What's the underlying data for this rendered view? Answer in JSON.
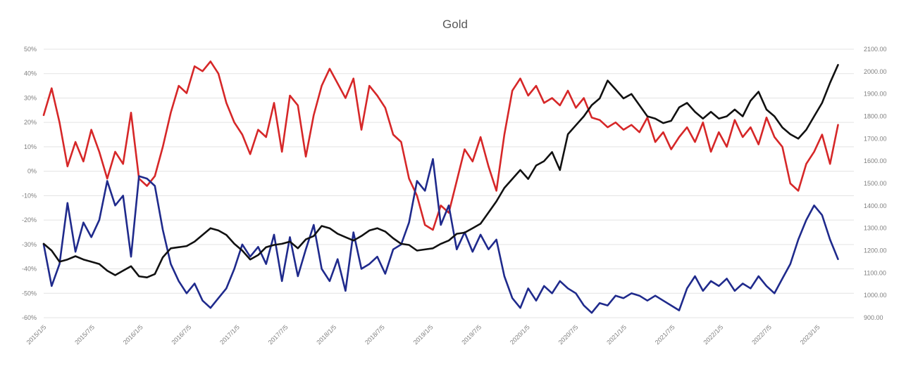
{
  "chart_data": {
    "type": "line",
    "title": "Gold",
    "grid": true,
    "legend": "none",
    "x": [
      "2015/1/5",
      "2015/7/5",
      "2016/1/5",
      "2016/7/5",
      "2017/1/5",
      "2017/7/5",
      "2018/1/5",
      "2018/7/5",
      "2019/1/5",
      "2019/7/5",
      "2020/1/5",
      "2020/7/5",
      "2021/1/5",
      "2021/7/5",
      "2022/1/5",
      "2022/7/5",
      "2023/1/5"
    ],
    "y_left": {
      "ticks": [
        "50%",
        "40%",
        "30%",
        "20%",
        "10%",
        "0%",
        "-10%",
        "-20%",
        "-30%",
        "-40%",
        "-50%",
        "-60%"
      ],
      "range": [
        -60,
        50
      ]
    },
    "y_right": {
      "ticks": [
        "2100.00",
        "2000.00",
        "1900.00",
        "1800.00",
        "1700.00",
        "1600.00",
        "1500.00",
        "1400.00",
        "1300.00",
        "1200.00",
        "1100.00",
        "1000.00",
        "900.00"
      ],
      "range": [
        900,
        2100
      ]
    },
    "series": [
      {
        "color": "#d62728",
        "axis": "left",
        "values": [
          [
            0,
            23
          ],
          [
            0.15,
            34
          ],
          [
            0.3,
            20
          ],
          [
            0.45,
            2
          ],
          [
            0.6,
            12
          ],
          [
            0.75,
            4
          ],
          [
            0.9,
            17
          ],
          [
            1.05,
            8
          ],
          [
            1.2,
            -3
          ],
          [
            1.35,
            8
          ],
          [
            1.5,
            3
          ],
          [
            1.65,
            24
          ],
          [
            1.8,
            -3
          ],
          [
            1.95,
            -6
          ],
          [
            2.1,
            -2
          ],
          [
            2.25,
            10
          ],
          [
            2.4,
            24
          ],
          [
            2.55,
            35
          ],
          [
            2.7,
            32
          ],
          [
            2.85,
            43
          ],
          [
            3,
            41
          ],
          [
            3.15,
            45
          ],
          [
            3.3,
            40
          ],
          [
            3.45,
            28
          ],
          [
            3.6,
            20
          ],
          [
            3.75,
            15
          ],
          [
            3.9,
            7
          ],
          [
            4.05,
            17
          ],
          [
            4.2,
            14
          ],
          [
            4.35,
            28
          ],
          [
            4.5,
            8
          ],
          [
            4.65,
            31
          ],
          [
            4.8,
            27
          ],
          [
            4.95,
            6
          ],
          [
            5.1,
            23
          ],
          [
            5.25,
            35
          ],
          [
            5.4,
            42
          ],
          [
            5.55,
            36
          ],
          [
            5.7,
            30
          ],
          [
            5.85,
            38
          ],
          [
            6,
            17
          ],
          [
            6.15,
            35
          ],
          [
            6.3,
            31
          ],
          [
            6.45,
            26
          ],
          [
            6.6,
            15
          ],
          [
            6.75,
            12
          ],
          [
            6.9,
            -3
          ],
          [
            7.05,
            -10
          ],
          [
            7.2,
            -22
          ],
          [
            7.35,
            -24
          ],
          [
            7.5,
            -14
          ],
          [
            7.65,
            -17
          ],
          [
            7.8,
            -4
          ],
          [
            7.95,
            9
          ],
          [
            8.1,
            4
          ],
          [
            8.25,
            14
          ],
          [
            8.4,
            2
          ],
          [
            8.55,
            -8
          ],
          [
            8.7,
            15
          ],
          [
            8.85,
            33
          ],
          [
            9,
            38
          ],
          [
            9.15,
            31
          ],
          [
            9.3,
            35
          ],
          [
            9.45,
            28
          ],
          [
            9.6,
            30
          ],
          [
            9.75,
            27
          ],
          [
            9.9,
            33
          ],
          [
            10.05,
            26
          ],
          [
            10.2,
            30
          ],
          [
            10.35,
            22
          ],
          [
            10.5,
            21
          ],
          [
            10.65,
            18
          ],
          [
            10.8,
            20
          ],
          [
            10.95,
            17
          ],
          [
            11.1,
            19
          ],
          [
            11.25,
            16
          ],
          [
            11.4,
            22
          ],
          [
            11.55,
            12
          ],
          [
            11.7,
            16
          ],
          [
            11.85,
            9
          ],
          [
            12,
            14
          ],
          [
            12.15,
            18
          ],
          [
            12.3,
            12
          ],
          [
            12.45,
            20
          ],
          [
            12.6,
            8
          ],
          [
            12.75,
            16
          ],
          [
            12.9,
            10
          ],
          [
            13.05,
            21
          ],
          [
            13.2,
            14
          ],
          [
            13.35,
            18
          ],
          [
            13.5,
            11
          ],
          [
            13.65,
            22
          ],
          [
            13.8,
            14
          ],
          [
            13.95,
            10
          ],
          [
            14.1,
            -5
          ],
          [
            14.25,
            -8
          ],
          [
            14.4,
            3
          ],
          [
            14.55,
            8
          ],
          [
            14.7,
            15
          ],
          [
            14.85,
            3
          ],
          [
            15,
            19
          ]
        ]
      },
      {
        "color": "#1f2a8c",
        "axis": "left",
        "values": [
          [
            0,
            -30
          ],
          [
            0.15,
            -47
          ],
          [
            0.3,
            -38
          ],
          [
            0.45,
            -13
          ],
          [
            0.6,
            -33
          ],
          [
            0.75,
            -21
          ],
          [
            0.9,
            -27
          ],
          [
            1.05,
            -20
          ],
          [
            1.2,
            -4
          ],
          [
            1.35,
            -14
          ],
          [
            1.5,
            -10
          ],
          [
            1.65,
            -35
          ],
          [
            1.8,
            -2
          ],
          [
            1.95,
            -3
          ],
          [
            2.1,
            -6
          ],
          [
            2.25,
            -24
          ],
          [
            2.4,
            -38
          ],
          [
            2.55,
            -45
          ],
          [
            2.7,
            -50
          ],
          [
            2.85,
            -46
          ],
          [
            3,
            -53
          ],
          [
            3.15,
            -56
          ],
          [
            3.3,
            -52
          ],
          [
            3.45,
            -48
          ],
          [
            3.6,
            -40
          ],
          [
            3.75,
            -30
          ],
          [
            3.9,
            -35
          ],
          [
            4.05,
            -31
          ],
          [
            4.2,
            -38
          ],
          [
            4.35,
            -26
          ],
          [
            4.5,
            -45
          ],
          [
            4.65,
            -27
          ],
          [
            4.8,
            -43
          ],
          [
            4.95,
            -32
          ],
          [
            5.1,
            -22
          ],
          [
            5.25,
            -40
          ],
          [
            5.4,
            -45
          ],
          [
            5.55,
            -36
          ],
          [
            5.7,
            -49
          ],
          [
            5.85,
            -25
          ],
          [
            6,
            -40
          ],
          [
            6.15,
            -38
          ],
          [
            6.3,
            -35
          ],
          [
            6.45,
            -42
          ],
          [
            6.6,
            -32
          ],
          [
            6.75,
            -30
          ],
          [
            6.9,
            -21
          ],
          [
            7.05,
            -4
          ],
          [
            7.2,
            -8
          ],
          [
            7.35,
            5
          ],
          [
            7.5,
            -22
          ],
          [
            7.65,
            -14
          ],
          [
            7.8,
            -32
          ],
          [
            7.95,
            -25
          ],
          [
            8.1,
            -33
          ],
          [
            8.25,
            -26
          ],
          [
            8.4,
            -32
          ],
          [
            8.55,
            -28
          ],
          [
            8.7,
            -43
          ],
          [
            8.85,
            -52
          ],
          [
            9,
            -56
          ],
          [
            9.15,
            -48
          ],
          [
            9.3,
            -53
          ],
          [
            9.45,
            -47
          ],
          [
            9.6,
            -50
          ],
          [
            9.75,
            -45
          ],
          [
            9.9,
            -48
          ],
          [
            10.05,
            -50
          ],
          [
            10.2,
            -55
          ],
          [
            10.35,
            -58
          ],
          [
            10.5,
            -54
          ],
          [
            10.65,
            -55
          ],
          [
            10.8,
            -51
          ],
          [
            10.95,
            -52
          ],
          [
            11.1,
            -50
          ],
          [
            11.25,
            -51
          ],
          [
            11.4,
            -53
          ],
          [
            11.55,
            -51
          ],
          [
            11.7,
            -53
          ],
          [
            11.85,
            -55
          ],
          [
            12,
            -57
          ],
          [
            12.15,
            -48
          ],
          [
            12.3,
            -43
          ],
          [
            12.45,
            -49
          ],
          [
            12.6,
            -45
          ],
          [
            12.75,
            -47
          ],
          [
            12.9,
            -44
          ],
          [
            13.05,
            -49
          ],
          [
            13.2,
            -46
          ],
          [
            13.35,
            -48
          ],
          [
            13.5,
            -43
          ],
          [
            13.65,
            -47
          ],
          [
            13.8,
            -50
          ],
          [
            13.95,
            -44
          ],
          [
            14.1,
            -38
          ],
          [
            14.25,
            -28
          ],
          [
            14.4,
            -20
          ],
          [
            14.55,
            -14
          ],
          [
            14.7,
            -18
          ],
          [
            14.85,
            -28
          ],
          [
            15,
            -36
          ]
        ]
      },
      {
        "color": "#111111",
        "axis": "right",
        "values": [
          [
            0,
            1230
          ],
          [
            0.15,
            1200
          ],
          [
            0.3,
            1150
          ],
          [
            0.45,
            1160
          ],
          [
            0.6,
            1175
          ],
          [
            0.75,
            1160
          ],
          [
            0.9,
            1150
          ],
          [
            1.05,
            1140
          ],
          [
            1.2,
            1110
          ],
          [
            1.35,
            1090
          ],
          [
            1.5,
            1110
          ],
          [
            1.65,
            1130
          ],
          [
            1.8,
            1085
          ],
          [
            1.95,
            1080
          ],
          [
            2.1,
            1095
          ],
          [
            2.25,
            1170
          ],
          [
            2.4,
            1210
          ],
          [
            2.55,
            1215
          ],
          [
            2.7,
            1220
          ],
          [
            2.85,
            1240
          ],
          [
            3,
            1270
          ],
          [
            3.15,
            1300
          ],
          [
            3.3,
            1290
          ],
          [
            3.45,
            1270
          ],
          [
            3.6,
            1230
          ],
          [
            3.75,
            1200
          ],
          [
            3.9,
            1160
          ],
          [
            4.05,
            1180
          ],
          [
            4.2,
            1215
          ],
          [
            4.35,
            1225
          ],
          [
            4.5,
            1230
          ],
          [
            4.65,
            1240
          ],
          [
            4.8,
            1210
          ],
          [
            4.95,
            1250
          ],
          [
            5.1,
            1265
          ],
          [
            5.25,
            1310
          ],
          [
            5.4,
            1300
          ],
          [
            5.55,
            1275
          ],
          [
            5.7,
            1260
          ],
          [
            5.85,
            1245
          ],
          [
            6,
            1265
          ],
          [
            6.15,
            1290
          ],
          [
            6.3,
            1300
          ],
          [
            6.45,
            1285
          ],
          [
            6.6,
            1255
          ],
          [
            6.75,
            1230
          ],
          [
            6.9,
            1225
          ],
          [
            7.05,
            1200
          ],
          [
            7.2,
            1205
          ],
          [
            7.35,
            1210
          ],
          [
            7.5,
            1230
          ],
          [
            7.65,
            1245
          ],
          [
            7.8,
            1275
          ],
          [
            7.95,
            1280
          ],
          [
            8.1,
            1300
          ],
          [
            8.25,
            1320
          ],
          [
            8.4,
            1370
          ],
          [
            8.55,
            1420
          ],
          [
            8.7,
            1480
          ],
          [
            8.85,
            1520
          ],
          [
            9,
            1560
          ],
          [
            9.15,
            1520
          ],
          [
            9.3,
            1580
          ],
          [
            9.45,
            1600
          ],
          [
            9.6,
            1640
          ],
          [
            9.75,
            1560
          ],
          [
            9.9,
            1720
          ],
          [
            10.05,
            1760
          ],
          [
            10.2,
            1800
          ],
          [
            10.35,
            1850
          ],
          [
            10.5,
            1880
          ],
          [
            10.65,
            1960
          ],
          [
            10.8,
            1920
          ],
          [
            10.95,
            1880
          ],
          [
            11.1,
            1900
          ],
          [
            11.25,
            1850
          ],
          [
            11.4,
            1800
          ],
          [
            11.55,
            1790
          ],
          [
            11.7,
            1770
          ],
          [
            11.85,
            1780
          ],
          [
            12,
            1840
          ],
          [
            12.15,
            1860
          ],
          [
            12.3,
            1820
          ],
          [
            12.45,
            1790
          ],
          [
            12.6,
            1820
          ],
          [
            12.75,
            1790
          ],
          [
            12.9,
            1800
          ],
          [
            13.05,
            1830
          ],
          [
            13.2,
            1800
          ],
          [
            13.35,
            1870
          ],
          [
            13.5,
            1910
          ],
          [
            13.65,
            1830
          ],
          [
            13.8,
            1800
          ],
          [
            13.95,
            1750
          ],
          [
            14.1,
            1720
          ],
          [
            14.25,
            1700
          ],
          [
            14.4,
            1740
          ],
          [
            14.55,
            1800
          ],
          [
            14.7,
            1860
          ],
          [
            14.85,
            1950
          ],
          [
            15,
            2030
          ]
        ]
      }
    ]
  }
}
